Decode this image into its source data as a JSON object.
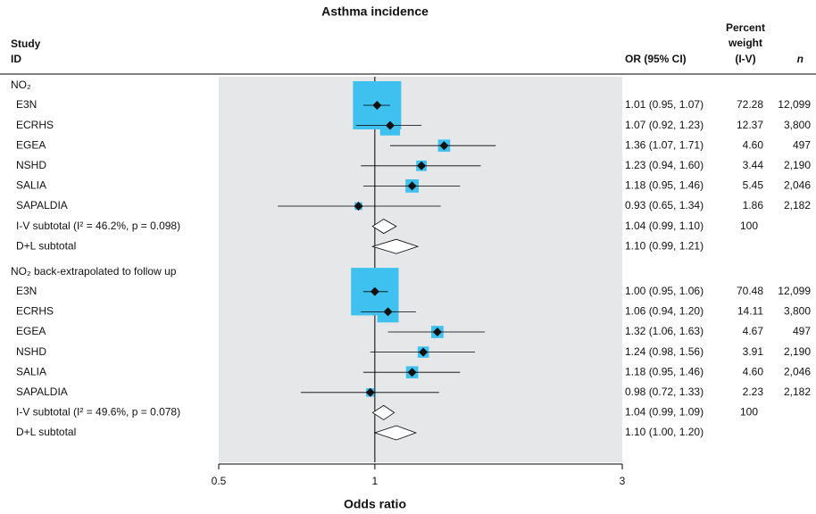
{
  "chart_data": {
    "type": "forest",
    "title": "Asthma incidence",
    "x_label": "Odds ratio",
    "log_x": true,
    "xlim": [
      0.5,
      3
    ],
    "xticks": [
      0.5,
      1,
      3
    ],
    "reference": 1,
    "box_color": "#3ec1ef",
    "panel_color": "#e6e7e8",
    "headers": {
      "study": "Study",
      "id": "ID",
      "or": "OR (95% CI)",
      "weight1": "Percent",
      "weight2": "weight",
      "weight3": "(I-V)",
      "n": "n"
    },
    "groups": [
      {
        "name": "NO₂",
        "rows": [
          {
            "label": "E3N",
            "or": 1.01,
            "lo": 0.95,
            "hi": 1.07,
            "ci_label": "1.01 (0.95, 1.07)",
            "weight": 72.28,
            "weight_label": "72.28",
            "n": "12,099"
          },
          {
            "label": "ECRHS",
            "or": 1.07,
            "lo": 0.92,
            "hi": 1.23,
            "ci_label": "1.07 (0.92, 1.23)",
            "weight": 12.37,
            "weight_label": "12.37",
            "n": "3,800"
          },
          {
            "label": "EGEA",
            "or": 1.36,
            "lo": 1.07,
            "hi": 1.71,
            "ci_label": "1.36 (1.07, 1.71)",
            "weight": 4.6,
            "weight_label": "4.60",
            "n": "497"
          },
          {
            "label": "NSHD",
            "or": 1.23,
            "lo": 0.94,
            "hi": 1.6,
            "ci_label": "1.23 (0.94, 1.60)",
            "weight": 3.44,
            "weight_label": "3.44",
            "n": "2,190"
          },
          {
            "label": "SALIA",
            "or": 1.18,
            "lo": 0.95,
            "hi": 1.46,
            "ci_label": "1.18 (0.95, 1.46)",
            "weight": 5.45,
            "weight_label": "5.45",
            "n": "2,046"
          },
          {
            "label": "SAPALDIA",
            "or": 0.93,
            "lo": 0.65,
            "hi": 1.34,
            "ci_label": "0.93 (0.65, 1.34)",
            "weight": 1.86,
            "weight_label": "1.86",
            "n": "2,182"
          },
          {
            "label": "I-V subtotal (I² = 46.2%, p = 0.098)",
            "shape": "diamond",
            "or": 1.04,
            "lo": 0.99,
            "hi": 1.1,
            "ci_label": "1.04 (0.99, 1.10)",
            "weight": 100
          },
          {
            "label": "D+L subtotal",
            "shape": "diamond",
            "or": 1.1,
            "lo": 0.99,
            "hi": 1.21,
            "ci_label": "1.10 (0.99, 1.21)"
          }
        ]
      },
      {
        "name": "NO₂ back-extrapolated to follow up",
        "rows": [
          {
            "label": "E3N",
            "or": 1.0,
            "lo": 0.95,
            "hi": 1.06,
            "ci_label": "1.00 (0.95, 1.06)",
            "weight": 70.48,
            "weight_label": "70.48",
            "n": "12,099"
          },
          {
            "label": "ECRHS",
            "or": 1.06,
            "lo": 0.94,
            "hi": 1.2,
            "ci_label": "1.06 (0.94, 1.20)",
            "weight": 14.11,
            "weight_label": "14.11",
            "n": "3,800"
          },
          {
            "label": "EGEA",
            "or": 1.32,
            "lo": 1.06,
            "hi": 1.63,
            "ci_label": "1.32 (1.06, 1.63)",
            "weight": 4.67,
            "weight_label": "4.67",
            "n": "497"
          },
          {
            "label": "NSHD",
            "or": 1.24,
            "lo": 0.98,
            "hi": 1.56,
            "ci_label": "1.24 (0.98, 1.56)",
            "weight": 3.91,
            "weight_label": "3.91",
            "n": "2,190"
          },
          {
            "label": "SALIA",
            "or": 1.18,
            "lo": 0.95,
            "hi": 1.46,
            "ci_label": "1.18 (0.95, 1.46)",
            "weight": 4.6,
            "weight_label": "4.60",
            "n": "2,046"
          },
          {
            "label": "SAPALDIA",
            "or": 0.98,
            "lo": 0.72,
            "hi": 1.33,
            "ci_label": "0.98 (0.72, 1.33)",
            "weight": 2.23,
            "weight_label": "2.23",
            "n": "2,182"
          },
          {
            "label": "I-V subtotal (I² = 49.6%, p = 0.078)",
            "shape": "diamond",
            "or": 1.04,
            "lo": 0.99,
            "hi": 1.09,
            "ci_label": "1.04 (0.99, 1.09)",
            "weight": 100
          },
          {
            "label": "D+L subtotal",
            "shape": "diamond",
            "or": 1.1,
            "lo": 1.0,
            "hi": 1.2,
            "ci_label": "1.10 (1.00, 1.20)"
          }
        ]
      }
    ]
  }
}
